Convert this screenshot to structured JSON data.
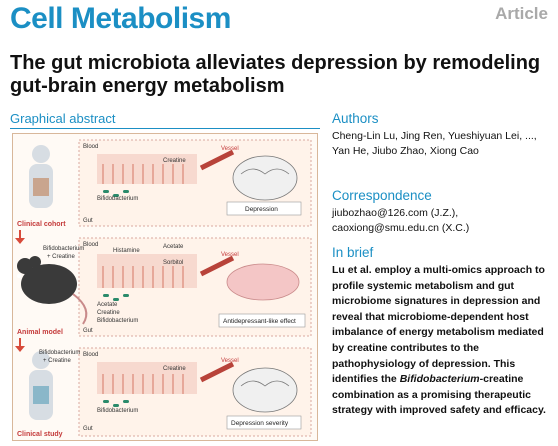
{
  "journal": "Cell Metabolism",
  "article_type": "Article",
  "title": "The gut microbiota alleviates depression by remodeling gut-brain energy metabolism",
  "graphical_abstract": {
    "heading": "Graphical abstract",
    "stages": [
      "Clinical cohort",
      "Animal model",
      "Clinical study"
    ],
    "outcomes": [
      "Depression",
      "Antidepressant-like effect",
      "Depression severity"
    ],
    "labels": {
      "blood": "Blood",
      "gut": "Gut",
      "vessel": "Vessel",
      "creatine": "Creatine",
      "bifido": "Bifidobacterium",
      "acetate": "Acetate",
      "sorbitol": "Sorbitol",
      "histamine": "Histamine",
      "plus_creatine": "+ Creatine",
      "bifido_plus": "Bifidobacterium"
    }
  },
  "authors": {
    "heading": "Authors",
    "names": "Cheng-Lin Lu, Jing Ren, Yueshiyuan Lei, ..., Yan He, Jiubo Zhao, Xiong Cao"
  },
  "correspondence": {
    "heading": "Correspondence",
    "email1": "jiubozhao@126.com (J.Z.),",
    "email2": "caoxiong@smu.edu.cn (X.C.)"
  },
  "in_brief": {
    "heading": "In brief",
    "text_before": "Lu et al. employ a multi-omics approach to profile systemic metabolism and gut microbiome signatures in depression and reveal that microbiome-dependent host imbalance of energy metabolism mediated by creatine contributes to the pathophysiology of depression. This identifies the ",
    "italic": "Bifidobacterium",
    "text_after": "-creatine combination as a promising therapeutic strategy with improved safety and efficacy."
  }
}
